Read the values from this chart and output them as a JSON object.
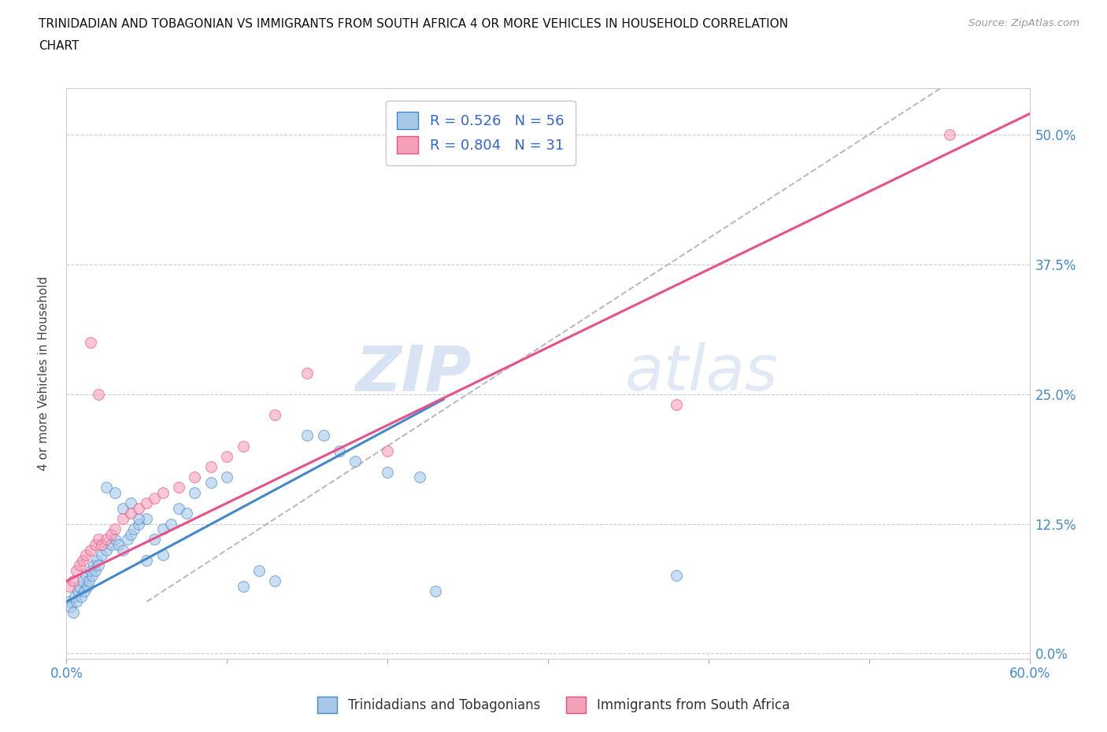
{
  "title_line1": "TRINIDADIAN AND TOBAGONIAN VS IMMIGRANTS FROM SOUTH AFRICA 4 OR MORE VEHICLES IN HOUSEHOLD CORRELATION",
  "title_line2": "CHART",
  "source_text": "Source: ZipAtlas.com",
  "ylabel": "4 or more Vehicles in Household",
  "xmin": 0.0,
  "xmax": 0.6,
  "ymin": -0.005,
  "ymax": 0.545,
  "ytick_vals": [
    0.0,
    0.125,
    0.25,
    0.375,
    0.5
  ],
  "ytick_labels": [
    "0.0%",
    "12.5%",
    "25.0%",
    "37.5%",
    "50.0%"
  ],
  "xtick_vals": [
    0.0,
    0.1,
    0.2,
    0.3,
    0.4,
    0.5,
    0.6
  ],
  "xtick_labels": [
    "0.0%",
    "",
    "",
    "",
    "",
    "",
    "60.0%"
  ],
  "grid_color": "#cccccc",
  "watermark_zip": "ZIP",
  "watermark_atlas": "atlas",
  "blue_color": "#a8c8e8",
  "pink_color": "#f4a0b8",
  "blue_line_color": "#4488cc",
  "pink_line_color": "#e8508a",
  "dashed_line_color": "#bbbbbb",
  "blue_scatter_x": [
    0.002,
    0.003,
    0.004,
    0.005,
    0.006,
    0.007,
    0.008,
    0.009,
    0.01,
    0.011,
    0.012,
    0.013,
    0.014,
    0.015,
    0.016,
    0.017,
    0.018,
    0.019,
    0.02,
    0.022,
    0.025,
    0.028,
    0.03,
    0.032,
    0.035,
    0.038,
    0.04,
    0.042,
    0.045,
    0.05,
    0.055,
    0.06,
    0.065,
    0.07,
    0.075,
    0.08,
    0.09,
    0.1,
    0.11,
    0.12,
    0.13,
    0.15,
    0.16,
    0.17,
    0.18,
    0.2,
    0.22,
    0.23,
    0.38,
    0.025,
    0.03,
    0.035,
    0.04,
    0.045,
    0.05,
    0.06
  ],
  "blue_scatter_y": [
    0.05,
    0.045,
    0.04,
    0.055,
    0.05,
    0.06,
    0.065,
    0.055,
    0.07,
    0.06,
    0.075,
    0.065,
    0.07,
    0.08,
    0.075,
    0.085,
    0.08,
    0.09,
    0.085,
    0.095,
    0.1,
    0.105,
    0.11,
    0.105,
    0.1,
    0.11,
    0.115,
    0.12,
    0.125,
    0.13,
    0.11,
    0.12,
    0.125,
    0.14,
    0.135,
    0.155,
    0.165,
    0.17,
    0.065,
    0.08,
    0.07,
    0.21,
    0.21,
    0.195,
    0.185,
    0.175,
    0.17,
    0.06,
    0.075,
    0.16,
    0.155,
    0.14,
    0.145,
    0.13,
    0.09,
    0.095
  ],
  "pink_scatter_x": [
    0.002,
    0.004,
    0.006,
    0.008,
    0.01,
    0.012,
    0.015,
    0.018,
    0.02,
    0.022,
    0.025,
    0.028,
    0.03,
    0.035,
    0.04,
    0.045,
    0.05,
    0.055,
    0.06,
    0.07,
    0.08,
    0.09,
    0.1,
    0.11,
    0.13,
    0.15,
    0.2,
    0.38,
    0.015,
    0.02,
    0.55
  ],
  "pink_scatter_y": [
    0.065,
    0.07,
    0.08,
    0.085,
    0.09,
    0.095,
    0.1,
    0.105,
    0.11,
    0.105,
    0.11,
    0.115,
    0.12,
    0.13,
    0.135,
    0.14,
    0.145,
    0.15,
    0.155,
    0.16,
    0.17,
    0.18,
    0.19,
    0.2,
    0.23,
    0.27,
    0.195,
    0.24,
    0.3,
    0.25,
    0.5
  ],
  "blue_R": 0.526,
  "blue_N": 56,
  "pink_R": 0.804,
  "pink_N": 31,
  "blue_line_x": [
    0.0,
    0.235
  ],
  "blue_line_y": [
    0.05,
    0.245
  ],
  "pink_line_x": [
    0.0,
    0.6
  ],
  "pink_line_y": [
    0.07,
    0.52
  ],
  "diag_line_x": [
    0.05,
    0.545
  ],
  "diag_line_y": [
    0.05,
    0.545
  ]
}
